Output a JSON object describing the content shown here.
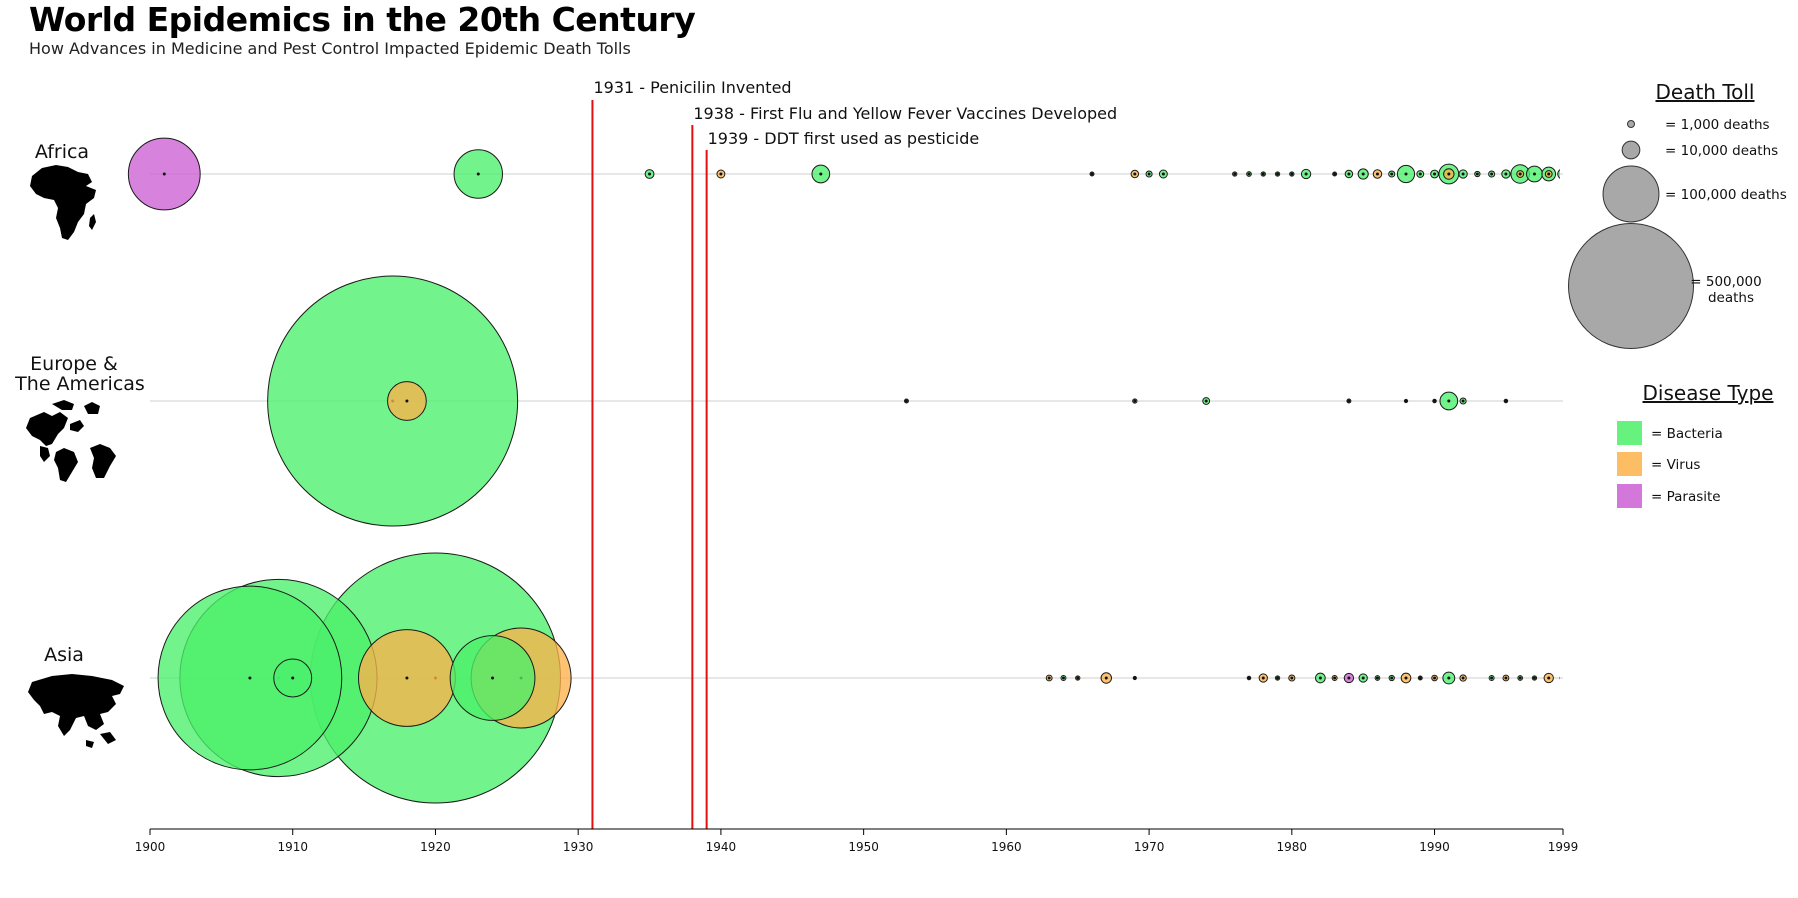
{
  "header": {
    "title": "World Epidemics in the 20th Century",
    "subtitle": "How Advances in Medicine and Pest Control Impacted Epidemic Death Tolls"
  },
  "colors": {
    "Bacteria": "#4cf06a",
    "Virus": "#fdb14a",
    "Parasite": "#cc5fd3",
    "event_line": "#e01010",
    "legend_gray": "#a8a8a8"
  },
  "legend": {
    "death_toll_title": "Death Toll",
    "sizes": [
      {
        "deaths": 1000,
        "label": "= 1,000 deaths"
      },
      {
        "deaths": 10000,
        "label": "= 10,000 deaths"
      },
      {
        "deaths": 100000,
        "label": "= 100,000 deaths"
      },
      {
        "deaths": 500000,
        "label_line1": "= 500,000",
        "label_line2": "deaths"
      }
    ],
    "disease_type_title": "Disease Type",
    "types": [
      {
        "type": "Bacteria",
        "label": "= Bacteria"
      },
      {
        "type": "Virus",
        "label": "= Virus"
      },
      {
        "type": "Parasite",
        "label": "= Parasite"
      }
    ]
  },
  "chart_data": {
    "type": "scatter",
    "title": "World Epidemics in the 20th Century",
    "subtitle": "How Advances in Medicine and Pest Control Impacted Epidemic Death Tolls",
    "x_axis": {
      "min": 1900,
      "max": 1999,
      "ticks": [
        "1900",
        "1910",
        "1920",
        "1930",
        "1940",
        "1950",
        "1960",
        "1970",
        "1980",
        "1990",
        "1999"
      ]
    },
    "grid": false,
    "rows": [
      {
        "region": "Africa",
        "label_lines": [
          "Africa"
        ],
        "icon": "africa-map-icon"
      },
      {
        "region": "Europe & The Americas",
        "label_lines": [
          "Europe &",
          "The Americas"
        ],
        "icon": "europe-americas-map-icon"
      },
      {
        "region": "Asia",
        "label_lines": [
          "Asia"
        ],
        "icon": "asia-map-icon"
      }
    ],
    "events": [
      {
        "year": 1931,
        "label": "1931 - Penicilin Invented"
      },
      {
        "year": 1938,
        "label": "1938 - First Flu and Yellow Fever Vaccines Developed"
      },
      {
        "year": 1939,
        "label": "1939 - DDT first used as pesticide"
      }
    ],
    "series": [
      {
        "region": "Africa",
        "points": [
          {
            "year": 1901,
            "deaths": 165000,
            "type": "Parasite"
          },
          {
            "year": 1923,
            "deaths": 75000,
            "type": "Bacteria"
          },
          {
            "year": 1935,
            "deaths": 2500,
            "type": "Bacteria"
          },
          {
            "year": 1940,
            "deaths": 2000,
            "type": "Virus"
          },
          {
            "year": 1947,
            "deaths": 10000,
            "type": "Bacteria"
          },
          {
            "year": 1966,
            "deaths": 500,
            "type": "Bacteria"
          },
          {
            "year": 1969,
            "deaths": 1800,
            "type": "Virus"
          },
          {
            "year": 1970,
            "deaths": 1200,
            "type": "Bacteria"
          },
          {
            "year": 1971,
            "deaths": 2000,
            "type": "Bacteria"
          },
          {
            "year": 1976,
            "deaths": 600,
            "type": "Virus"
          },
          {
            "year": 1977,
            "deaths": 700,
            "type": "Bacteria"
          },
          {
            "year": 1978,
            "deaths": 600,
            "type": "Bacteria"
          },
          {
            "year": 1979,
            "deaths": 600,
            "type": "Bacteria"
          },
          {
            "year": 1980,
            "deaths": 600,
            "type": "Bacteria"
          },
          {
            "year": 1981,
            "deaths": 2800,
            "type": "Bacteria"
          },
          {
            "year": 1983,
            "deaths": 500,
            "type": "Bacteria"
          },
          {
            "year": 1984,
            "deaths": 1800,
            "type": "Bacteria"
          },
          {
            "year": 1985,
            "deaths": 3300,
            "type": "Bacteria"
          },
          {
            "year": 1986,
            "deaths": 2300,
            "type": "Virus"
          },
          {
            "year": 1987,
            "deaths": 1200,
            "type": "Bacteria"
          },
          {
            "year": 1988,
            "deaths": 9500,
            "type": "Bacteria"
          },
          {
            "year": 1989,
            "deaths": 1500,
            "type": "Bacteria"
          },
          {
            "year": 1990,
            "deaths": 1900,
            "type": "Bacteria"
          },
          {
            "year": 1991,
            "deaths": 12500,
            "type": "Bacteria"
          },
          {
            "year": 1991,
            "deaths": 3500,
            "type": "Virus"
          },
          {
            "year": 1992,
            "deaths": 2200,
            "type": "Bacteria"
          },
          {
            "year": 1993,
            "deaths": 900,
            "type": "Bacteria"
          },
          {
            "year": 1994,
            "deaths": 1200,
            "type": "Bacteria"
          },
          {
            "year": 1995,
            "deaths": 2200,
            "type": "Bacteria"
          },
          {
            "year": 1996,
            "deaths": 11000,
            "type": "Bacteria"
          },
          {
            "year": 1996,
            "deaths": 1500,
            "type": "Virus"
          },
          {
            "year": 1997,
            "deaths": 8000,
            "type": "Bacteria"
          },
          {
            "year": 1998,
            "deaths": 6000,
            "type": "Bacteria"
          },
          {
            "year": 1998,
            "deaths": 1500,
            "type": "Virus"
          },
          {
            "year": 1999,
            "deaths": 3500,
            "type": "Bacteria"
          }
        ]
      },
      {
        "region": "Europe & The Americas",
        "points": [
          {
            "year": 1917,
            "deaths": 2000000,
            "type": "Bacteria"
          },
          {
            "year": 1918,
            "deaths": 48000,
            "type": "Virus"
          },
          {
            "year": 1953,
            "deaths": 500,
            "type": "Virus"
          },
          {
            "year": 1969,
            "deaths": 600,
            "type": "Virus"
          },
          {
            "year": 1974,
            "deaths": 1500,
            "type": "Bacteria"
          },
          {
            "year": 1984,
            "deaths": 500,
            "type": "Bacteria"
          },
          {
            "year": 1988,
            "deaths": 300,
            "type": "Bacteria"
          },
          {
            "year": 1990,
            "deaths": 400,
            "type": "Virus"
          },
          {
            "year": 1991,
            "deaths": 10000,
            "type": "Bacteria"
          },
          {
            "year": 1992,
            "deaths": 1200,
            "type": "Bacteria"
          },
          {
            "year": 1995,
            "deaths": 400,
            "type": "Virus"
          }
        ]
      },
      {
        "region": "Asia",
        "points": [
          {
            "year": 1907,
            "deaths": 1080000,
            "type": "Bacteria"
          },
          {
            "year": 1909,
            "deaths": 1245000,
            "type": "Bacteria"
          },
          {
            "year": 1910,
            "deaths": 46000,
            "type": "Bacteria"
          },
          {
            "year": 1918,
            "deaths": 300000,
            "type": "Virus"
          },
          {
            "year": 1920,
            "deaths": 2000000,
            "type": "Bacteria"
          },
          {
            "year": 1926,
            "deaths": 320000,
            "type": "Virus"
          },
          {
            "year": 1924,
            "deaths": 230000,
            "type": "Bacteria"
          },
          {
            "year": 1963,
            "deaths": 1100,
            "type": "Virus"
          },
          {
            "year": 1964,
            "deaths": 800,
            "type": "Bacteria"
          },
          {
            "year": 1965,
            "deaths": 600,
            "type": "Virus"
          },
          {
            "year": 1967,
            "deaths": 3500,
            "type": "Virus"
          },
          {
            "year": 1969,
            "deaths": 300,
            "type": "Virus"
          },
          {
            "year": 1977,
            "deaths": 400,
            "type": "Virus"
          },
          {
            "year": 1978,
            "deaths": 2200,
            "type": "Virus"
          },
          {
            "year": 1979,
            "deaths": 600,
            "type": "Bacteria"
          },
          {
            "year": 1980,
            "deaths": 1200,
            "type": "Virus"
          },
          {
            "year": 1982,
            "deaths": 3000,
            "type": "Bacteria"
          },
          {
            "year": 1983,
            "deaths": 800,
            "type": "Virus"
          },
          {
            "year": 1984,
            "deaths": 2800,
            "type": "Parasite"
          },
          {
            "year": 1985,
            "deaths": 2200,
            "type": "Bacteria"
          },
          {
            "year": 1986,
            "deaths": 700,
            "type": "Bacteria"
          },
          {
            "year": 1987,
            "deaths": 900,
            "type": "Bacteria"
          },
          {
            "year": 1988,
            "deaths": 3000,
            "type": "Virus"
          },
          {
            "year": 1989,
            "deaths": 500,
            "type": "Bacteria"
          },
          {
            "year": 1990,
            "deaths": 1000,
            "type": "Virus"
          },
          {
            "year": 1991,
            "deaths": 4500,
            "type": "Bacteria"
          },
          {
            "year": 1992,
            "deaths": 1300,
            "type": "Virus"
          },
          {
            "year": 1994,
            "deaths": 800,
            "type": "Bacteria"
          },
          {
            "year": 1995,
            "deaths": 1100,
            "type": "Virus"
          },
          {
            "year": 1996,
            "deaths": 700,
            "type": "Bacteria"
          },
          {
            "year": 1997,
            "deaths": 600,
            "type": "Bacteria"
          },
          {
            "year": 1998,
            "deaths": 2800,
            "type": "Virus"
          },
          {
            "year": 1999,
            "deaths": 1100,
            "type": "Virus"
          }
        ]
      }
    ]
  }
}
